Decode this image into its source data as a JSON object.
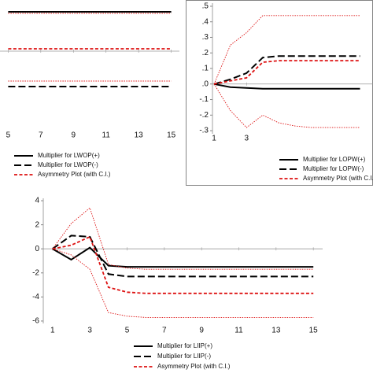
{
  "chart_data": [
    {
      "type": "line",
      "x": [
        5,
        6,
        7,
        8,
        9,
        10,
        11,
        12,
        13,
        14,
        15
      ],
      "xlim": [
        4.5,
        15.5
      ],
      "xticks": [
        5,
        7,
        9,
        11,
        13,
        15
      ],
      "ylim": [
        -0.9,
        0.65
      ],
      "zero_line": true,
      "series": [
        {
          "name": "Multiplier for LWOP(+)",
          "color": "#000000",
          "style": "solid",
          "values": [
            0.5,
            0.5,
            0.5,
            0.5,
            0.5,
            0.5,
            0.5,
            0.5,
            0.5,
            0.5,
            0.5
          ]
        },
        {
          "name": "Multiplier for LWOP(-)",
          "color": "#000000",
          "style": "dash",
          "values": [
            -0.45,
            -0.45,
            -0.45,
            -0.45,
            -0.45,
            -0.45,
            -0.45,
            -0.45,
            -0.45,
            -0.45,
            -0.45
          ]
        },
        {
          "name": "Asymmetry Plot (with C.I.)",
          "color": "#dd1111",
          "style": "short-dash",
          "values": [
            0.03,
            0.03,
            0.03,
            0.03,
            0.03,
            0.03,
            0.03,
            0.03,
            0.03,
            0.03,
            0.03
          ],
          "ci": {
            "upper": [
              0.48,
              0.48,
              0.48,
              0.48,
              0.48,
              0.48,
              0.48,
              0.48,
              0.48,
              0.48,
              0.48
            ],
            "lower": [
              -0.38,
              -0.38,
              -0.38,
              -0.38,
              -0.38,
              -0.38,
              -0.38,
              -0.38,
              -0.38,
              -0.38,
              -0.38
            ]
          }
        }
      ]
    },
    {
      "type": "line",
      "x": [
        1,
        2,
        3,
        4,
        5,
        6,
        7,
        8,
        9,
        10
      ],
      "xlim": [
        0.9,
        10.8
      ],
      "xticks": [
        1,
        3
      ],
      "ylim": [
        -0.32,
        0.52
      ],
      "yticks": [
        {
          "value": 0.5,
          "label": ".5"
        },
        {
          "value": 0.4,
          "label": ".4"
        },
        {
          "value": 0.3,
          "label": ".3"
        },
        {
          "value": 0.2,
          "label": ".2"
        },
        {
          "value": 0.1,
          "label": ".1"
        },
        {
          "value": 0,
          "label": ".0"
        },
        {
          "value": -0.1,
          "label": "-.1"
        },
        {
          "value": -0.2,
          "label": "-.2"
        },
        {
          "value": -0.3,
          "label": "-.3"
        }
      ],
      "zero_line": true,
      "frame": true,
      "series": [
        {
          "name": "Multiplier for LOPW(+)",
          "color": "#000000",
          "style": "solid",
          "values": [
            0,
            -0.02,
            -0.025,
            -0.03,
            -0.03,
            -0.03,
            -0.03,
            -0.03,
            -0.03,
            -0.03
          ]
        },
        {
          "name": "Multiplier for LOPW(-)",
          "color": "#000000",
          "style": "dash",
          "values": [
            0,
            0.03,
            0.07,
            0.17,
            0.18,
            0.18,
            0.18,
            0.18,
            0.18,
            0.18
          ]
        },
        {
          "name": "Asymmetry Plot (with C.I.)",
          "color": "#dd1111",
          "style": "short-dash",
          "values": [
            0,
            0.02,
            0.04,
            0.14,
            0.15,
            0.15,
            0.15,
            0.15,
            0.15,
            0.15
          ],
          "ci": {
            "upper": [
              0,
              0.25,
              0.33,
              0.44,
              0.44,
              0.44,
              0.44,
              0.44,
              0.44,
              0.44
            ],
            "lower": [
              0,
              -0.17,
              -0.28,
              -0.2,
              -0.25,
              -0.27,
              -0.28,
              -0.28,
              -0.28,
              -0.28
            ]
          }
        }
      ]
    },
    {
      "type": "line",
      "x": [
        1,
        2,
        3,
        4,
        5,
        6,
        7,
        8,
        9,
        10,
        11,
        12,
        13,
        14,
        15
      ],
      "xlim": [
        0.5,
        15.5
      ],
      "xticks": [
        1,
        3,
        5,
        7,
        9,
        11,
        13,
        15
      ],
      "ylim": [
        -6.2,
        4.2
      ],
      "yticks": [
        4,
        2,
        0,
        -2,
        -4,
        -6
      ],
      "zero_line": true,
      "series": [
        {
          "name": "Multiplier for LIIP(+)",
          "color": "#000000",
          "style": "solid",
          "values": [
            0,
            -0.9,
            0.1,
            -1.4,
            -1.5,
            -1.5,
            -1.5,
            -1.5,
            -1.5,
            -1.5,
            -1.5,
            -1.5,
            -1.5,
            -1.5,
            -1.5
          ]
        },
        {
          "name": "Multiplier for LIIP(-)",
          "color": "#000000",
          "style": "dash",
          "values": [
            0,
            1.1,
            1.0,
            -2.1,
            -2.3,
            -2.3,
            -2.3,
            -2.3,
            -2.3,
            -2.3,
            -2.3,
            -2.3,
            -2.3,
            -2.3,
            -2.3
          ]
        },
        {
          "name": "Asymmetry Plot (with C.I.)",
          "color": "#dd1111",
          "style": "short-dash",
          "values": [
            0,
            0.3,
            1.0,
            -3.2,
            -3.6,
            -3.7,
            -3.7,
            -3.7,
            -3.7,
            -3.7,
            -3.7,
            -3.7,
            -3.7,
            -3.7,
            -3.7
          ],
          "ci": {
            "upper": [
              0,
              2.1,
              3.4,
              -1.3,
              -1.6,
              -1.7,
              -1.7,
              -1.7,
              -1.7,
              -1.7,
              -1.7,
              -1.7,
              -1.7,
              -1.7,
              -1.7
            ],
            "lower": [
              0,
              -0.5,
              -1.7,
              -5.3,
              -5.6,
              -5.7,
              -5.7,
              -5.7,
              -5.7,
              -5.7,
              -5.7,
              -5.7,
              -5.7,
              -5.7,
              -5.7
            ]
          }
        }
      ]
    }
  ]
}
